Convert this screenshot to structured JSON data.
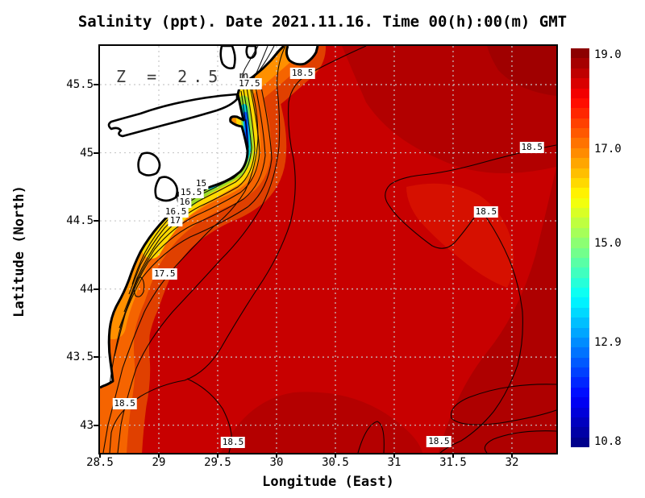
{
  "chart_data": {
    "type": "heatmap",
    "title": "Salinity (ppt). Date 2021.11.16. Time 00(h):00(m) GMT",
    "variable": "Salinity",
    "units": "ppt",
    "date": "2021.11.16",
    "time": "00(h):00(m) GMT",
    "annotation": "Z = 2.5 m",
    "xlabel": "Longitude (East)",
    "ylabel": "Latitude (North)",
    "x_ticks": [
      28.5,
      29,
      29.5,
      30,
      30.5,
      31,
      31.5,
      32
    ],
    "x_tick_labels": [
      "28.5",
      "29",
      "29.5",
      "30",
      "30.5",
      "31",
      "31.5",
      "32"
    ],
    "y_ticks": [
      45.5,
      45,
      44.5,
      44,
      43.5,
      43
    ],
    "y_tick_labels": [
      "45.5",
      "45",
      "44.5",
      "44",
      "43.5",
      "43"
    ],
    "xlim": [
      28.5,
      32.377
    ],
    "ylim": [
      42.797,
      45.784
    ],
    "grid": true,
    "grid_style": "white dotted at every 0.5 degree",
    "colormap": "jet",
    "colorbar": {
      "position": "right",
      "min": 10.8,
      "max": 19.0,
      "tick_values": [
        19.0,
        17.0,
        15.0,
        12.9,
        10.8
      ],
      "tick_labels": [
        "19.0",
        "17.0",
        "15.0",
        "12.9",
        "10.8"
      ],
      "n_bands": 40
    },
    "contour_levels_labeled": [
      15,
      15.5,
      16,
      16.5,
      17,
      17.5,
      18.5
    ],
    "contour_labels": [
      {
        "text": "17.5",
        "lon": 29.77,
        "lat": 45.505
      },
      {
        "text": "18.5",
        "lon": 30.22,
        "lat": 45.585
      },
      {
        "text": "18.5",
        "lon": 32.17,
        "lat": 45.04
      },
      {
        "text": "18.5",
        "lon": 31.78,
        "lat": 44.565
      },
      {
        "text": "15",
        "lon": 29.36,
        "lat": 44.77
      },
      {
        "text": "15.5",
        "lon": 29.275,
        "lat": 44.705
      },
      {
        "text": "16",
        "lon": 29.22,
        "lat": 44.635
      },
      {
        "text": "16.5",
        "lon": 29.145,
        "lat": 44.565
      },
      {
        "text": "17",
        "lon": 29.14,
        "lat": 44.5
      },
      {
        "text": "17.5",
        "lon": 29.05,
        "lat": 44.11
      },
      {
        "text": "18.5",
        "lon": 28.71,
        "lat": 43.16
      },
      {
        "text": "18.5",
        "lon": 29.63,
        "lat": 42.875
      },
      {
        "text": "18.5",
        "lon": 31.38,
        "lat": 42.88
      }
    ],
    "description": "Sea-surface salinity field at 2.5 m depth; low-salinity river plume (down to ~10.8 ppt) hugging the northwestern coast, open-sea values 18.5-19 ppt"
  },
  "layout_colors": {
    "sea_base": "#c80000",
    "land": "#ffffff",
    "coastline": "#000000",
    "gridline": "#c8c8c8",
    "contour": "#000000"
  }
}
